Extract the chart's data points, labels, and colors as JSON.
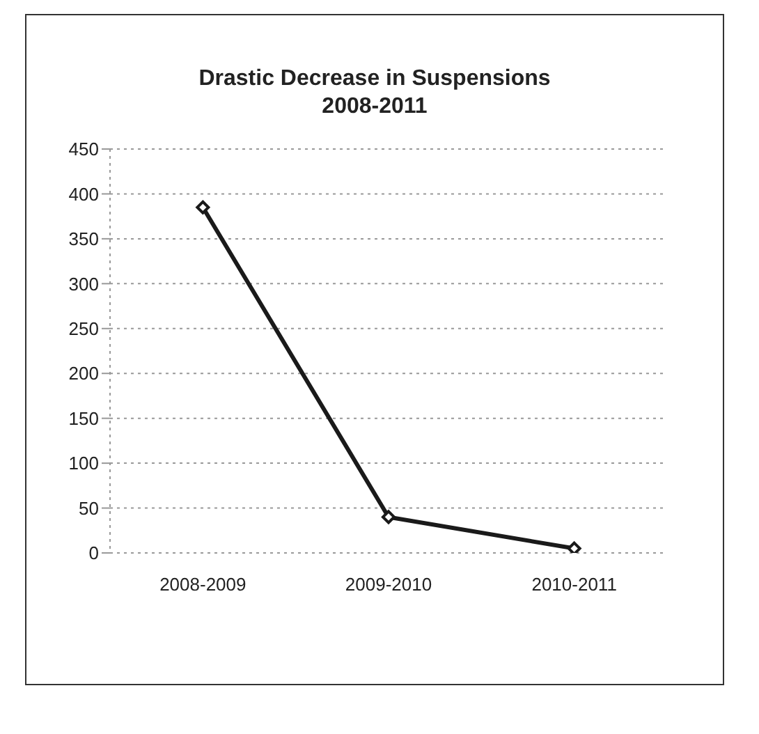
{
  "chart_data": {
    "type": "line",
    "title": "Drastic Decrease in Suspensions\n2008-2011",
    "categories": [
      "2008-2009",
      "2009-2010",
      "2010-2011"
    ],
    "series": [
      {
        "color": "#1a1a1a",
        "values": [
          385,
          40,
          5
        ]
      }
    ],
    "ylim": [
      0,
      450
    ],
    "yticks": [
      0,
      50,
      100,
      150,
      200,
      250,
      300,
      350,
      400,
      450
    ],
    "grid": "y",
    "marker": "diamond",
    "legend": false
  }
}
